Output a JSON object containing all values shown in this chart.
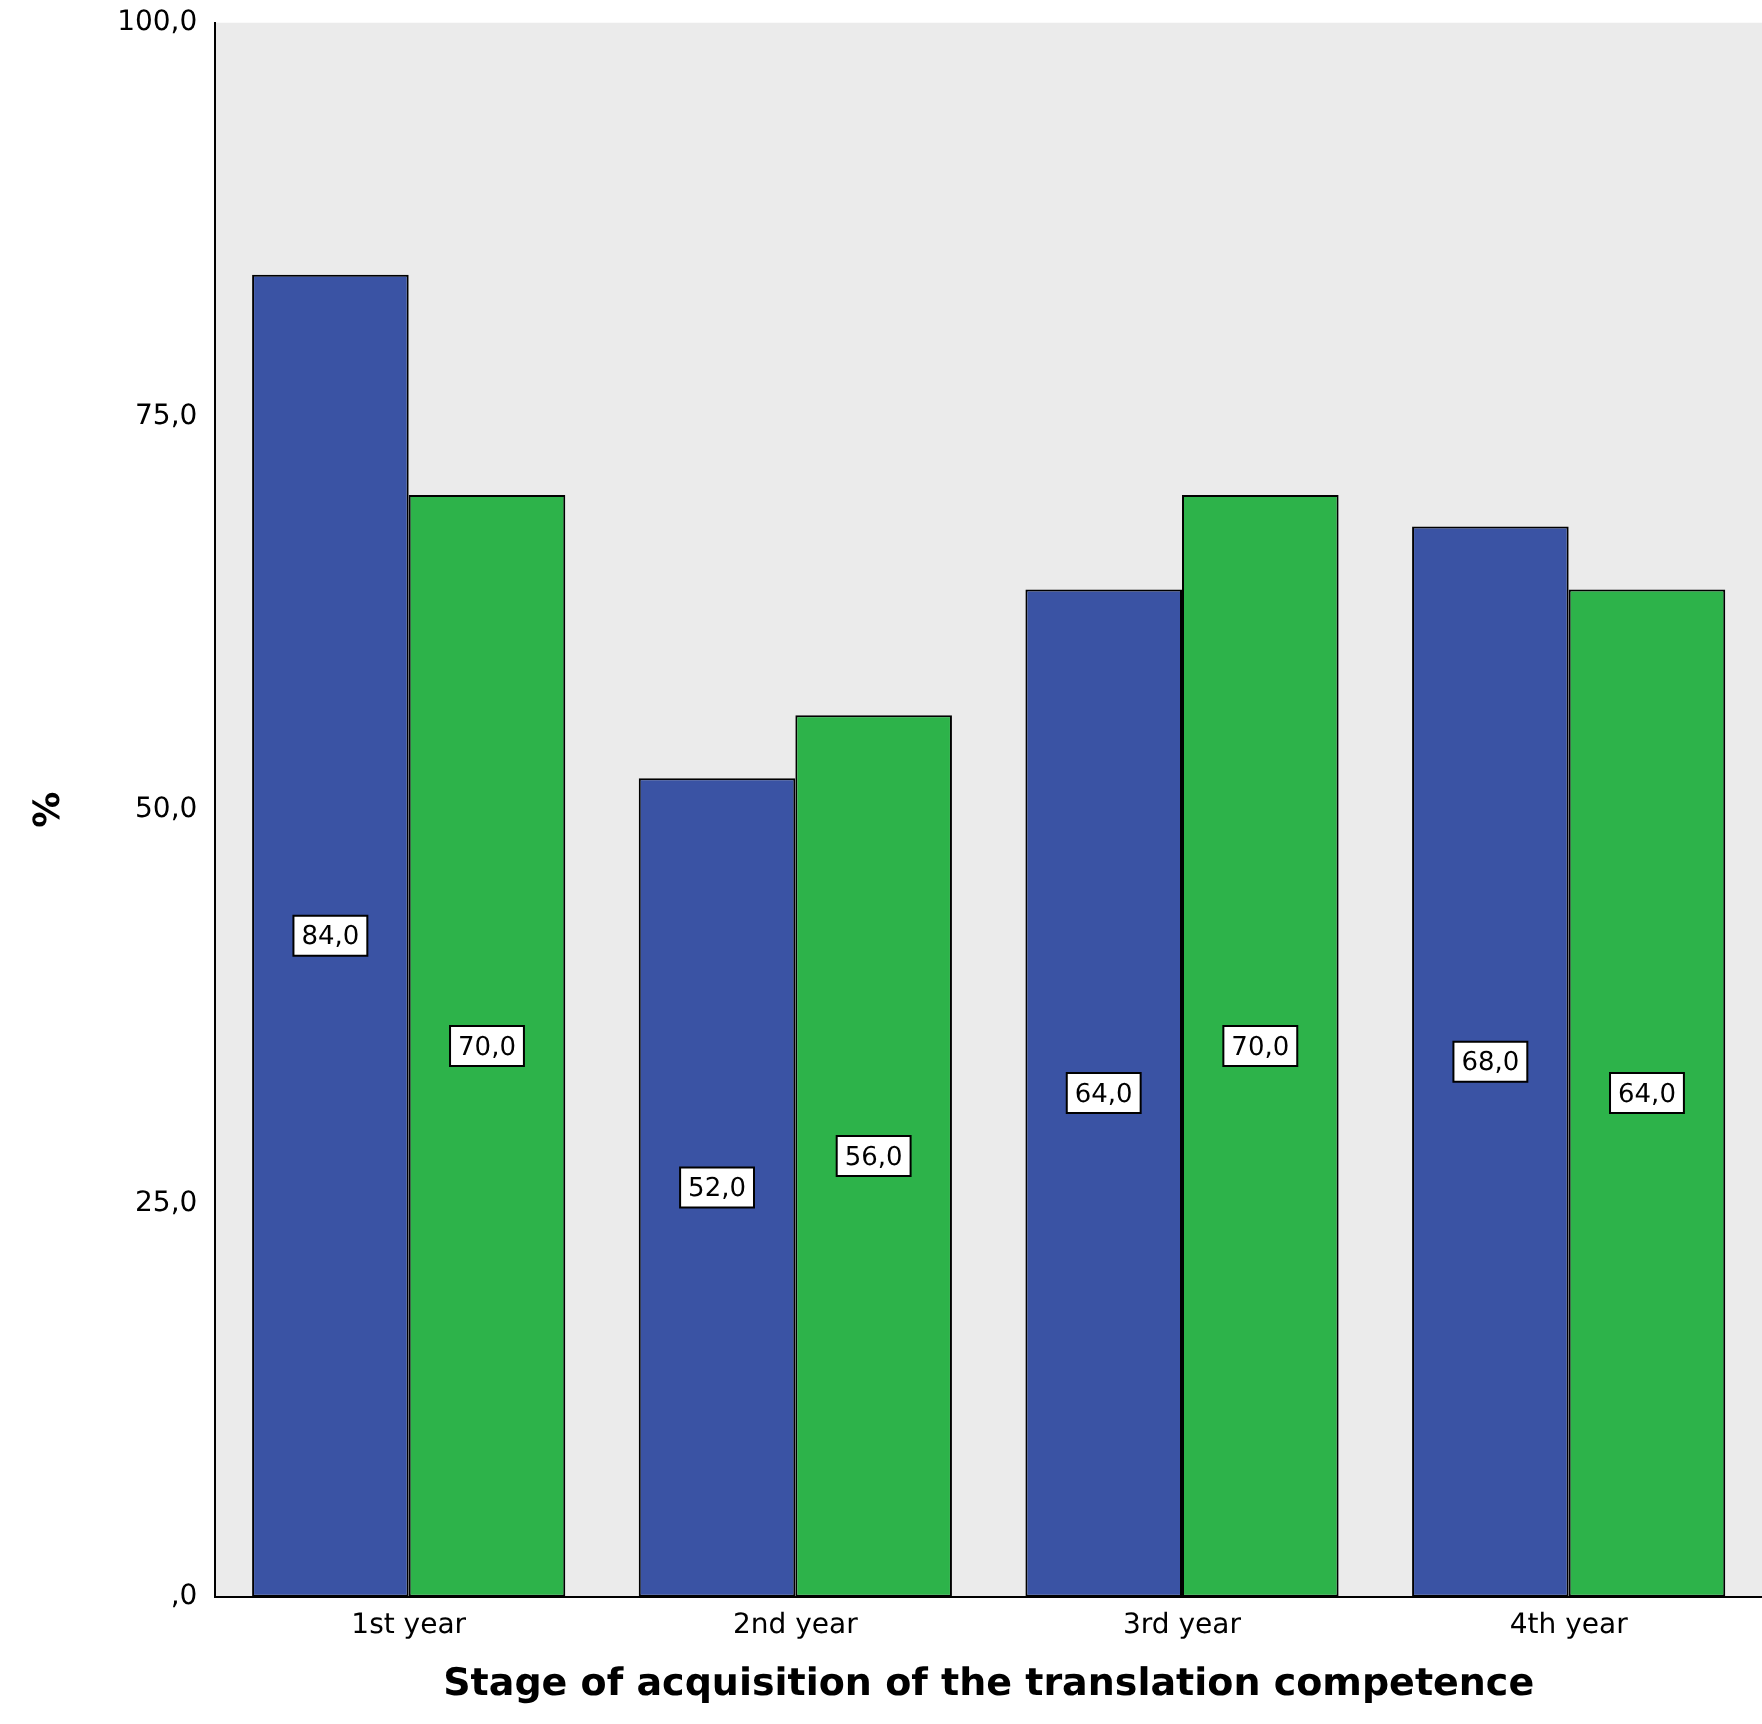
{
  "chart_data": {
    "type": "bar",
    "xlabel": "Stage of acquisition of the translation competence",
    "ylabel": "%",
    "categories": [
      "1st year",
      "2nd year",
      "3rd year",
      "4th year"
    ],
    "series": [
      {
        "color": "#3a53a4",
        "values": [
          84,
          52,
          64,
          68
        ],
        "value_labels": [
          "84,0",
          "52,0",
          "64,0",
          "68,0"
        ]
      },
      {
        "color": "#2db34a",
        "values": [
          70,
          56,
          70,
          64
        ],
        "value_labels": [
          "70,0",
          "56,0",
          "70,0",
          "64,0"
        ]
      }
    ],
    "ylim": [
      0,
      100
    ],
    "yticks": [
      {
        "value": 0,
        "label": ",0"
      },
      {
        "value": 25,
        "label": "25,0"
      },
      {
        "value": 50,
        "label": "50,0"
      },
      {
        "value": 75,
        "label": "75,0"
      },
      {
        "value": 100,
        "label": "100,0"
      }
    ],
    "grid": false,
    "legend": false
  }
}
